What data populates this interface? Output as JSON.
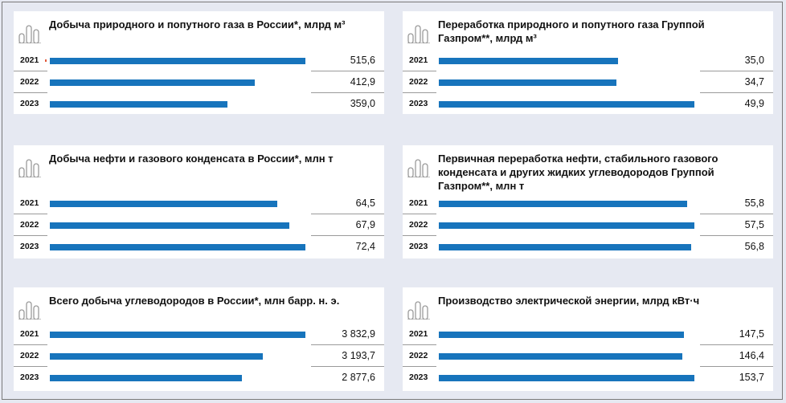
{
  "accent_color": "#1774bc",
  "chart_data": [
    {
      "type": "bar",
      "title": "Добыча природного и попутного газа в России*, млрд м³",
      "categories": [
        "2021",
        "2022",
        "2023"
      ],
      "values": [
        515.6,
        412.9,
        359.0
      ],
      "value_labels": [
        "515,6",
        "412,9",
        "359,0"
      ]
    },
    {
      "type": "bar",
      "title": "Переработка природного и попутного газа Группой Газпром**, млрд м³",
      "categories": [
        "2021",
        "2022",
        "2023"
      ],
      "values": [
        35.0,
        34.7,
        49.9
      ],
      "value_labels": [
        "35,0",
        "34,7",
        "49,9"
      ]
    },
    {
      "type": "bar",
      "title": "Добыча нефти и газового конденсата в России*, млн т",
      "categories": [
        "2021",
        "2022",
        "2023"
      ],
      "values": [
        64.5,
        67.9,
        72.4
      ],
      "value_labels": [
        "64,5",
        "67,9",
        "72,4"
      ]
    },
    {
      "type": "bar",
      "title": "Первичная переработка нефти, стабильного газового конденсата и других жидких углеводородов Группой Газпром**, млн т",
      "categories": [
        "2021",
        "2022",
        "2023"
      ],
      "values": [
        55.8,
        57.5,
        56.8
      ],
      "value_labels": [
        "55,8",
        "57,5",
        "56,8"
      ]
    },
    {
      "type": "bar",
      "title": "Всего добыча углеводородов в России*, млн барр. н. э.",
      "categories": [
        "2021",
        "2022",
        "2023"
      ],
      "values": [
        3832.9,
        3193.7,
        2877.6
      ],
      "value_labels": [
        "3 832,9",
        "3 193,7",
        "2 877,6"
      ]
    },
    {
      "type": "bar",
      "title": "Производство электрической энергии, млрд кВт·ч",
      "categories": [
        "2021",
        "2022",
        "2023"
      ],
      "values": [
        147.5,
        146.4,
        153.7
      ],
      "value_labels": [
        "147,5",
        "146,4",
        "153,7"
      ]
    }
  ]
}
